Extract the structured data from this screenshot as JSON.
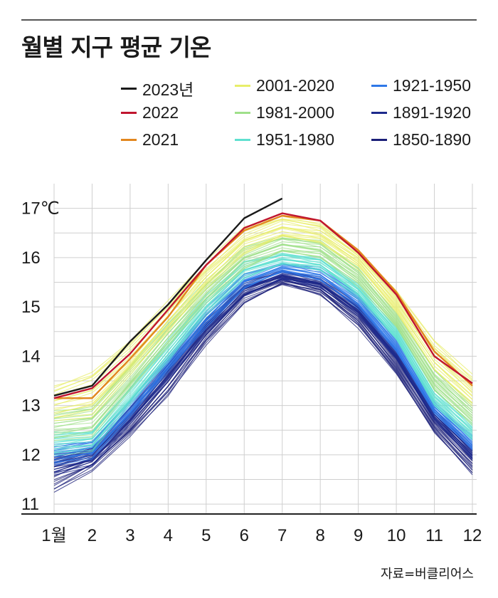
{
  "title": "월별 지구 평균 기온",
  "source": "자료=버클리어스",
  "chart_data": {
    "type": "line",
    "title": "월별 지구 평균 기온",
    "xlabel": "",
    "ylabel": "",
    "y_unit_label": "17℃",
    "x_tick_labels": [
      "1월",
      "2",
      "3",
      "4",
      "5",
      "6",
      "7",
      "8",
      "9",
      "10",
      "11",
      "12"
    ],
    "y_tick_labels": [
      "11",
      "12",
      "13",
      "14",
      "15",
      "16",
      "17℃"
    ],
    "ylim": [
      10.8,
      17.5
    ],
    "x": [
      1,
      2,
      3,
      4,
      5,
      6,
      7,
      8,
      9,
      10,
      11,
      12
    ],
    "grid": true,
    "legend_position": "top",
    "legend": [
      {
        "label": "2023년",
        "color": "#1a1a1a"
      },
      {
        "label": "2001-2020",
        "color": "#e8ee6a"
      },
      {
        "label": "1921-1950",
        "color": "#2f78e8"
      },
      {
        "label": "2022",
        "color": "#c0152f"
      },
      {
        "label": "1981-2000",
        "color": "#9fe08a"
      },
      {
        "label": "1891-1920",
        "color": "#1d2a8c"
      },
      {
        "label": "2021",
        "color": "#e2871f"
      },
      {
        "label": "1951-1980",
        "color": "#5fe0d0"
      },
      {
        "label": "1850-1890",
        "color": "#1b1f78"
      }
    ],
    "series": [
      {
        "name": "2023년",
        "color": "#1a1a1a",
        "values": [
          13.2,
          13.4,
          14.3,
          15.05,
          15.95,
          16.8,
          17.2,
          null,
          null,
          null,
          null,
          null
        ]
      },
      {
        "name": "2022",
        "color": "#c0152f",
        "values": [
          13.15,
          13.35,
          14.05,
          14.95,
          15.85,
          16.6,
          16.9,
          16.75,
          16.1,
          15.25,
          14.0,
          13.45
        ]
      },
      {
        "name": "2021",
        "color": "#e2871f",
        "values": [
          13.15,
          13.15,
          13.95,
          14.8,
          15.85,
          16.55,
          16.85,
          16.75,
          16.15,
          15.3,
          14.1,
          13.4
        ]
      },
      {
        "name": "2001-2020",
        "color": "#e8ee6a",
        "range_low": [
          12.7,
          12.8,
          13.6,
          14.5,
          15.4,
          16.1,
          16.4,
          16.3,
          15.8,
          14.9,
          13.7,
          13.0
        ],
        "range_high": [
          13.4,
          13.7,
          14.3,
          15.1,
          15.9,
          16.6,
          16.85,
          16.7,
          16.15,
          15.35,
          14.3,
          13.6
        ]
      },
      {
        "name": "1981-2000",
        "color": "#9fe08a",
        "range_low": [
          12.3,
          12.4,
          13.3,
          14.2,
          15.1,
          15.8,
          16.1,
          16.0,
          15.45,
          14.6,
          13.3,
          12.6
        ],
        "range_high": [
          12.9,
          13.0,
          13.8,
          14.7,
          15.5,
          16.2,
          16.45,
          16.35,
          15.8,
          14.9,
          13.7,
          13.0
        ]
      },
      {
        "name": "1951-1980",
        "color": "#5fe0d0",
        "range_low": [
          12.0,
          12.1,
          13.0,
          13.9,
          14.85,
          15.6,
          15.85,
          15.75,
          15.2,
          14.35,
          13.0,
          12.3
        ],
        "range_high": [
          12.45,
          12.5,
          13.35,
          14.3,
          15.2,
          15.9,
          16.1,
          16.0,
          15.45,
          14.6,
          13.3,
          12.6
        ]
      },
      {
        "name": "1921-1950",
        "color": "#2f78e8",
        "range_low": [
          11.8,
          11.95,
          12.75,
          13.7,
          14.6,
          15.4,
          15.7,
          15.55,
          15.0,
          14.1,
          12.85,
          12.1
        ],
        "range_high": [
          12.2,
          12.3,
          13.1,
          14.0,
          14.95,
          15.65,
          15.9,
          15.8,
          15.25,
          14.35,
          13.05,
          12.35
        ]
      },
      {
        "name": "1891-1920",
        "color": "#1d2a8c",
        "range_low": [
          11.6,
          11.8,
          12.6,
          13.5,
          14.45,
          15.25,
          15.55,
          15.4,
          14.85,
          13.95,
          12.7,
          11.9
        ],
        "range_high": [
          12.0,
          12.15,
          12.95,
          13.85,
          14.8,
          15.5,
          15.75,
          15.6,
          15.05,
          14.15,
          12.9,
          12.15
        ]
      },
      {
        "name": "1850-1890",
        "color": "#1b1f78",
        "range_low": [
          11.25,
          11.7,
          12.35,
          13.2,
          14.25,
          15.1,
          15.45,
          15.25,
          14.6,
          13.65,
          12.45,
          11.6
        ],
        "range_high": [
          11.95,
          12.1,
          12.85,
          13.75,
          14.7,
          15.4,
          15.65,
          15.5,
          14.95,
          14.05,
          12.8,
          12.05
        ]
      }
    ]
  }
}
